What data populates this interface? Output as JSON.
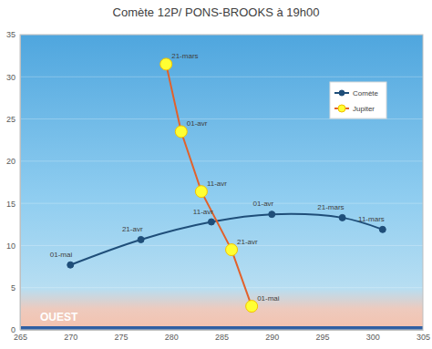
{
  "chart_data": {
    "type": "line",
    "title": "Comète 12P/ PONS-BROOKS à 19h00",
    "xlim": [
      265,
      305
    ],
    "xticks": [
      265,
      270,
      275,
      280,
      285,
      290,
      295,
      300,
      305
    ],
    "ylim": [
      0,
      35
    ],
    "yticks": [
      0,
      5,
      10,
      15,
      20,
      25,
      30,
      35
    ],
    "grid": true,
    "legend": "top-right",
    "data_labels": true,
    "annotations": [
      "OUEST"
    ],
    "series": [
      {
        "name": "Comète",
        "color": "#1f4e79",
        "marker": "circle",
        "line_style": "smooth",
        "x": [
          270,
          277,
          284,
          290,
          297,
          301
        ],
        "values": [
          7.7,
          10.7,
          12.8,
          13.7,
          13.3,
          11.9
        ],
        "point_labels": [
          "01-mai",
          "21-avr",
          "11-avr",
          "01-avr",
          "21-mars",
          "11-mars"
        ]
      },
      {
        "name": "Jupiter",
        "color": "#e2612b",
        "marker": "circle",
        "line_style": "solid",
        "x": [
          279.5,
          281,
          283,
          286,
          288
        ],
        "values": [
          31.5,
          23.5,
          16.4,
          9.5,
          2.8
        ],
        "point_labels": [
          "21-mars",
          "01-avr",
          "11-avr",
          "21-avr",
          "01-mai"
        ]
      }
    ]
  }
}
